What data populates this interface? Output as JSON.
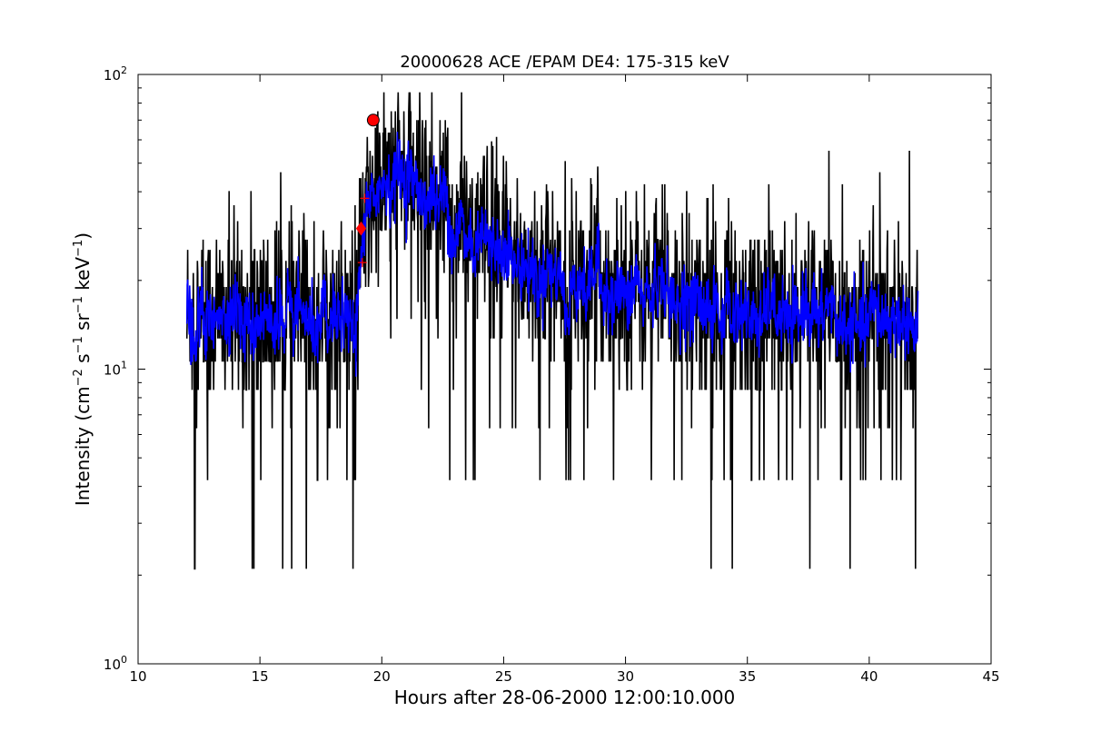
{
  "chart_data": {
    "type": "line",
    "title": "20000628 ACE /EPAM DE4: 175-315 keV",
    "xlabel": "Hours after 28-06-2000 12:00:10.000",
    "ylabel": {
      "prefix": "Intensity (cm",
      "parts": [
        {
          "base": "",
          "sup": "−2"
        },
        {
          "base": " s",
          "sup": "−1"
        },
        {
          "base": " sr",
          "sup": "−1"
        },
        {
          "base": " keV",
          "sup": "−1"
        }
      ],
      "suffix": ")"
    },
    "xlim": [
      10,
      45
    ],
    "ylim": [
      1,
      100
    ],
    "yscale": "log",
    "xticks": [
      10,
      15,
      20,
      25,
      30,
      35,
      40,
      45
    ],
    "xtick_labels": [
      "10",
      "15",
      "20",
      "25",
      "30",
      "35",
      "40",
      "45"
    ],
    "yticks": [
      {
        "value": 1,
        "base": "10",
        "exp": "0"
      },
      {
        "value": 10,
        "base": "10",
        "exp": "1"
      },
      {
        "value": 100,
        "base": "10",
        "exp": "2"
      }
    ],
    "grid": false,
    "series": [
      {
        "style": "raw",
        "color": "#000000",
        "x_start": 12.0,
        "x_end": 42.0,
        "profile": [
          {
            "x": 12.0,
            "y": 15
          },
          {
            "x": 18.9,
            "y": 15
          },
          {
            "x": 19.2,
            "y": 26
          },
          {
            "x": 19.6,
            "y": 38
          },
          {
            "x": 20.5,
            "y": 45
          },
          {
            "x": 21.5,
            "y": 42
          },
          {
            "x": 22.5,
            "y": 40
          },
          {
            "x": 23.0,
            "y": 30
          },
          {
            "x": 24.5,
            "y": 27
          },
          {
            "x": 26.0,
            "y": 22
          },
          {
            "x": 30.0,
            "y": 19
          },
          {
            "x": 35.0,
            "y": 16
          },
          {
            "x": 42.0,
            "y": 15
          }
        ],
        "levels": [
          2.1,
          4.2,
          6.3,
          8.5,
          10.6,
          12.7,
          14.8,
          16.9,
          19.0,
          21.2,
          23.3,
          25.4,
          27.5,
          29.6,
          31.8,
          33.9,
          36.0,
          38.1,
          40.2,
          42.4,
          44.5,
          46.6,
          48.7,
          50.8,
          53.0,
          55.1,
          57.2,
          59.3,
          61.4,
          63.5,
          66.0,
          70.0,
          75.0,
          87.0
        ]
      },
      {
        "style": "smoothed",
        "color": "#0000ff",
        "x_start": 12.0,
        "x_end": 42.0
      }
    ],
    "markers": [
      {
        "x": 19.65,
        "y": 70,
        "shape": "circle",
        "color": "#ff0000"
      },
      {
        "x": 19.15,
        "y": 30,
        "shape": "diamond",
        "color": "#ff0000"
      },
      {
        "x": 19.3,
        "y": 38,
        "shape": "plus",
        "color": "#ff0000"
      },
      {
        "x": 19.2,
        "y": 23,
        "shape": "plus",
        "color": "#ff0000"
      }
    ]
  }
}
